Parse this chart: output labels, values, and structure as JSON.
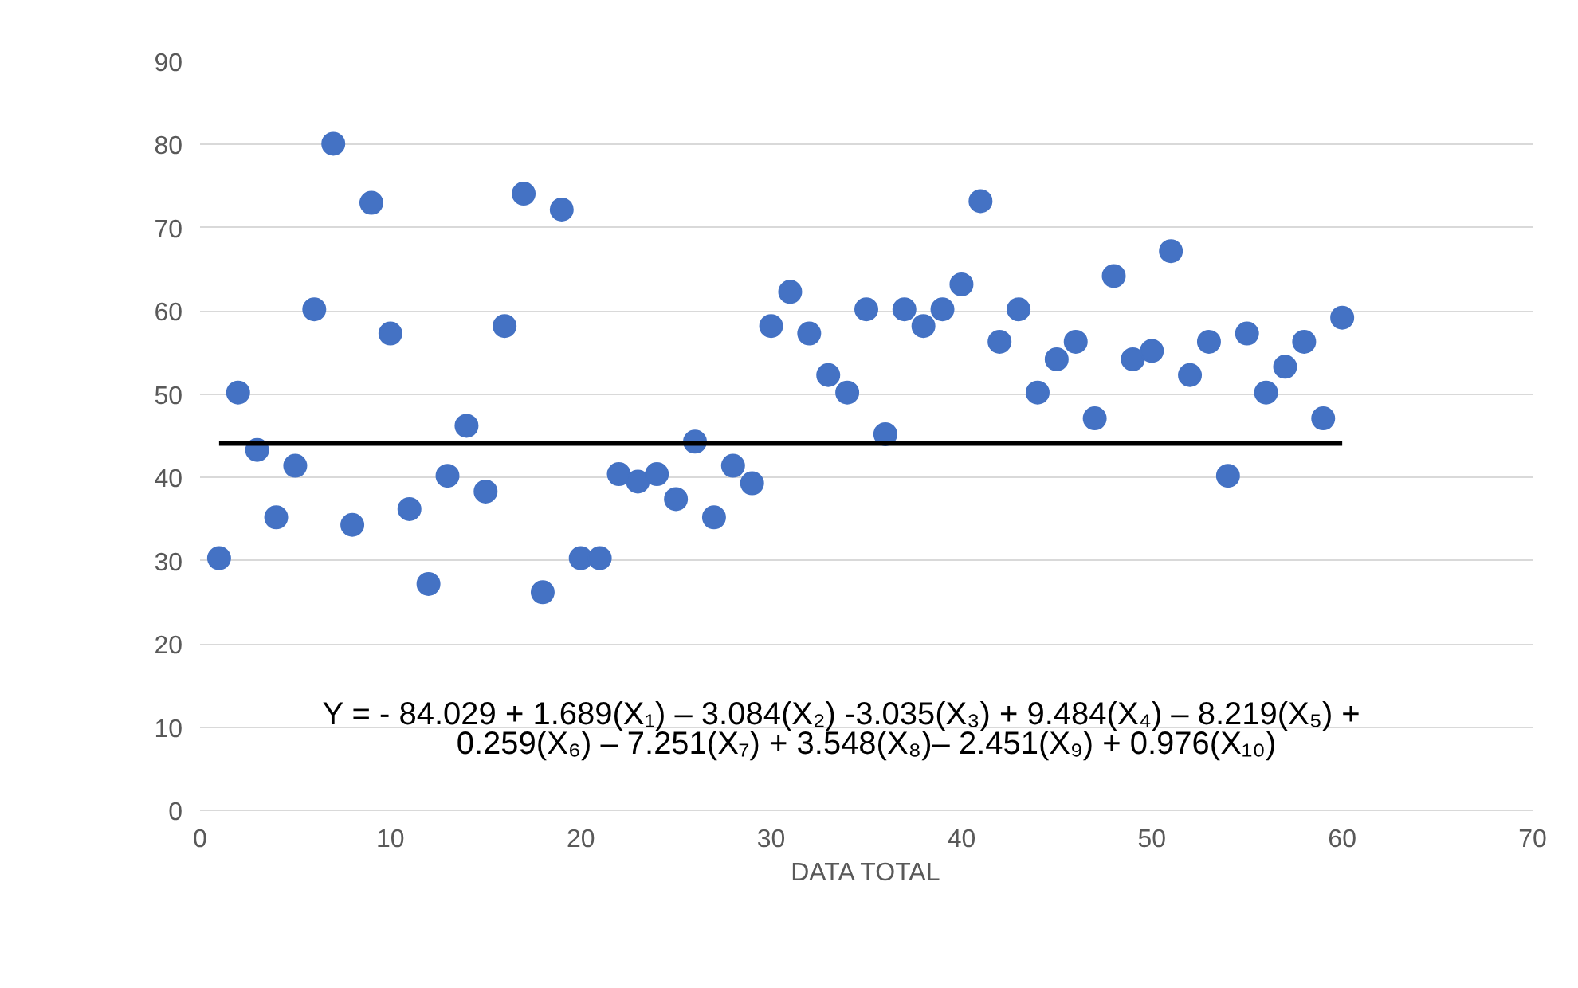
{
  "chart_data": {
    "type": "scatter",
    "xlabel": "DATA TOTAL",
    "x": [
      1,
      2,
      3,
      4,
      5,
      6,
      7,
      8,
      9,
      10,
      11,
      12,
      13,
      14,
      15,
      16,
      17,
      18,
      19,
      20,
      21,
      22,
      23,
      24,
      25,
      26,
      27,
      28,
      29,
      30,
      31,
      32,
      33,
      34,
      35,
      36,
      37,
      38,
      39,
      40,
      41,
      42,
      43,
      44,
      45,
      46,
      47,
      48,
      49,
      50,
      51,
      52,
      53,
      54,
      55,
      56,
      57,
      58,
      59,
      60
    ],
    "series": [
      {
        "marker": "circle",
        "color": "#4472c4",
        "values": [
          30.3,
          50.2,
          43.3,
          35.2,
          41.4,
          60.2,
          80.1,
          34.3,
          73.0,
          57.3,
          36.2,
          27.2,
          40.2,
          46.2,
          38.3,
          58.2,
          74.1,
          26.2,
          72.2,
          30.3,
          30.3,
          40.4,
          39.5,
          40.4,
          37.4,
          44.3,
          35.2,
          41.4,
          39.3,
          58.2,
          62.3,
          57.3,
          52.3,
          50.2,
          60.2,
          45.2,
          60.2,
          58.2,
          60.2,
          63.2,
          73.2,
          56.3,
          60.2,
          50.2,
          54.2,
          56.3,
          47.1,
          64.2,
          54.2,
          55.2,
          67.2,
          52.3,
          56.3,
          40.2,
          57.3,
          50.2,
          53.3,
          56.3,
          47.1,
          59.2
        ]
      },
      {
        "type": "line",
        "marker": "none",
        "color": "#000000",
        "x": [
          1,
          60
        ],
        "values": [
          44.1,
          44.1
        ]
      }
    ],
    "xlim": [
      0,
      70
    ],
    "ylim": [
      0,
      90
    ],
    "xticks": [
      0,
      10,
      20,
      30,
      40,
      50,
      60,
      70
    ],
    "yticks": [
      0,
      10,
      20,
      30,
      40,
      50,
      60,
      70,
      80,
      90
    ],
    "grid": "y",
    "annotations": [
      "Y = - 84.029 + 1.689(X₁) – 3.084(X₂) -3.035(X₃) + 9.484(X₄) – 8.219(X₅) +",
      "0.259(X₆) – 7.251(X₇) + 3.548(X₈)– 2.451(X₉) + 0.976(X₁₀)"
    ]
  }
}
